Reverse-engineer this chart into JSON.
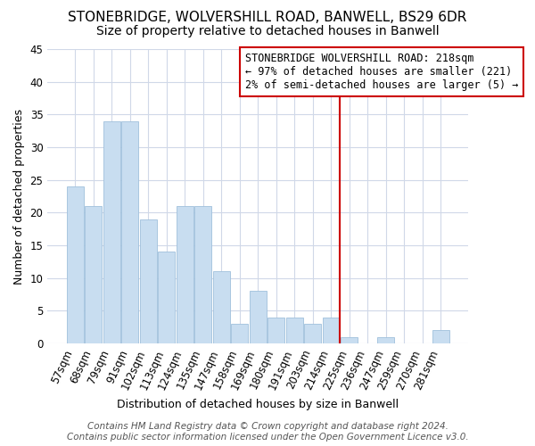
{
  "title": "STONEBRIDGE, WOLVERSHILL ROAD, BANWELL, BS29 6DR",
  "subtitle": "Size of property relative to detached houses in Banwell",
  "xlabel": "Distribution of detached houses by size in Banwell",
  "ylabel": "Number of detached properties",
  "bar_color": "#c8ddf0",
  "bar_edge_color": "#a0c0dc",
  "categories": [
    "57sqm",
    "68sqm",
    "79sqm",
    "91sqm",
    "102sqm",
    "113sqm",
    "124sqm",
    "135sqm",
    "147sqm",
    "158sqm",
    "169sqm",
    "180sqm",
    "191sqm",
    "203sqm",
    "214sqm",
    "225sqm",
    "236sqm",
    "247sqm",
    "259sqm",
    "270sqm",
    "281sqm"
  ],
  "values": [
    24,
    21,
    34,
    34,
    19,
    14,
    21,
    21,
    11,
    3,
    8,
    4,
    4,
    3,
    4,
    1,
    0,
    1,
    0,
    0,
    2
  ],
  "ylim": [
    0,
    45
  ],
  "yticks": [
    0,
    5,
    10,
    15,
    20,
    25,
    30,
    35,
    40,
    45
  ],
  "vline_x_index": 14,
  "vline_color": "#cc0000",
  "annotation_text": "STONEBRIDGE WOLVERSHILL ROAD: 218sqm\n← 97% of detached houses are smaller (221)\n2% of semi-detached houses are larger (5) →",
  "annotation_box_color": "#ffffff",
  "annotation_box_edge_color": "#cc0000",
  "footer_text": "Contains HM Land Registry data © Crown copyright and database right 2024.\nContains public sector information licensed under the Open Government Licence v3.0.",
  "background_color": "#ffffff",
  "grid_color": "#d0d8e8",
  "title_fontsize": 11,
  "subtitle_fontsize": 10,
  "axis_label_fontsize": 9,
  "tick_fontsize": 8.5,
  "annotation_fontsize": 8.5,
  "footer_fontsize": 7.5
}
